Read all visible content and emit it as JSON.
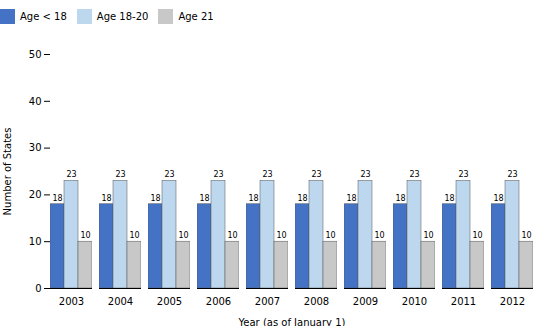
{
  "chart_data": {
    "type": "bar",
    "xlabel": "Year (as of January 1)",
    "ylabel": "Number of States",
    "categories": [
      "2003",
      "2004",
      "2005",
      "2006",
      "2007",
      "2008",
      "2009",
      "2010",
      "2011",
      "2012"
    ],
    "series": [
      {
        "name": "Age < 18",
        "color": "#4472C4",
        "values": [
          18,
          18,
          18,
          18,
          18,
          18,
          18,
          18,
          18,
          18
        ]
      },
      {
        "name": "Age 18-20",
        "color": "#BDD7EE",
        "values": [
          23,
          23,
          23,
          23,
          23,
          23,
          23,
          23,
          23,
          23
        ]
      },
      {
        "name": "Age 21",
        "color": "#C8C8C8",
        "values": [
          10,
          10,
          10,
          10,
          10,
          10,
          10,
          10,
          10,
          10
        ]
      }
    ],
    "ylim": [
      0,
      50
    ],
    "yticks": [
      0,
      10,
      20,
      30,
      40,
      50
    ],
    "grid": false,
    "legend": "top",
    "data_labels": true
  }
}
